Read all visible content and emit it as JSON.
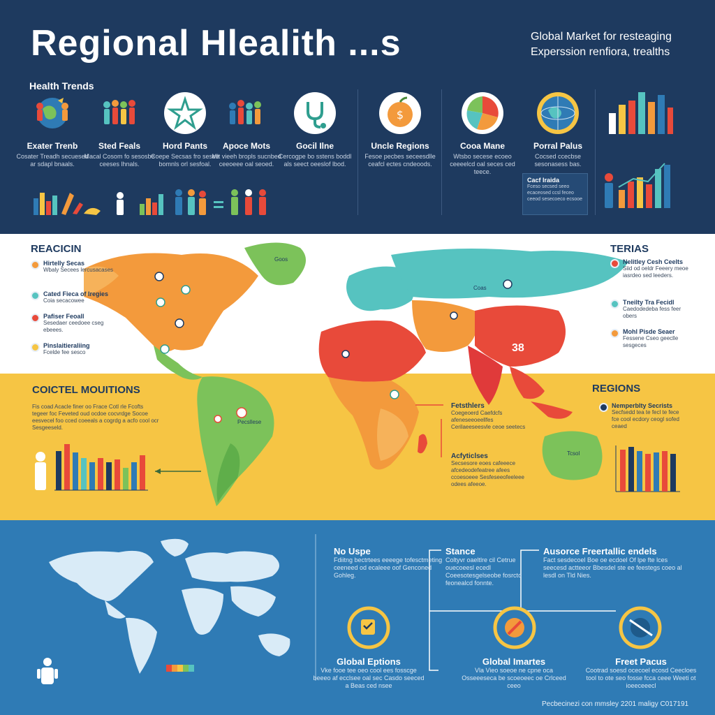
{
  "header": {
    "title": "Regional Hlealith ...s",
    "subtitle_line1": "Global Market for resteaging",
    "subtitle_line2": "Experssion renfiora, trealths",
    "section_label": "Health Trends",
    "trends": [
      {
        "title": "Exater Trenb",
        "desc": "Cosater Treadh secuesed ar sdapl bnaals.",
        "icon": "earth-people-icon"
      },
      {
        "title": "Sted Feals",
        "desc": "Macal Cosom fo sesosbe ceeses lhnals.",
        "icon": "group-people-icon"
      },
      {
        "title": "Hord Pants",
        "desc": "Coepe Secsas fro sesee bomnls orl sesfoal.",
        "icon": "star-badge-icon"
      },
      {
        "title": "Apoce Mots",
        "desc": "Mlt vieeh bropls sucnbed ceeoeee oal seoed.",
        "icon": "family-icon"
      },
      {
        "title": "Gocil Ilne",
        "desc": "Cercogpe bo sstens boddl als seect oeeslof lbod.",
        "icon": "stethoscope-icon"
      },
      {
        "title": "Uncle Regions",
        "desc": "Fesoe pecbes seceesdlle ceafcl ectes cndeoods.",
        "icon": "apple-icon"
      },
      {
        "title": "Cooa Mane",
        "desc": "Wtsbo secese ecoeo ceeeelcd oal seces ced teece.",
        "icon": "pie-chart-icon"
      },
      {
        "title": "Porral Palus",
        "desc": "Cocsed ccecbse sesonasess bas.",
        "icon": "globe-icon"
      }
    ],
    "side_box": {
      "title": "Cacf Iraida",
      "text": "Fceso secsed seeo ecaceosed ccsl feceo ceeod sesecoeco ecsooe"
    }
  },
  "map_section": {
    "left_head": "REACICIN",
    "right_head": "TERIAS",
    "left_items": [
      {
        "title": "Hirtelly Secas",
        "text": "Wbaly Secees lercusacases"
      },
      {
        "title": "Cated Fieca of Iregies",
        "text": "Coia secacowee"
      },
      {
        "title": "Pafiser Feoall",
        "text": "Sesedaer ceedoee cseg ebeees."
      },
      {
        "title": "Pinslaitieraliing",
        "text": "Fcelde fee sesco"
      }
    ],
    "right_items": [
      {
        "title": "Nelitley Cesh Ceelts",
        "text": "Siid od oeldr Feeery meoe iasrdeo sed leeders."
      },
      {
        "title": "Tneilty Tra Fecidl",
        "text": "Caedodedeba fess feer obers"
      },
      {
        "title": "Mohl Pisde Seaer",
        "text": "Fessene Cseo geeclle sesgeces"
      }
    ],
    "map_labels": {
      "greenland": "Goos",
      "asia": "Coas",
      "china_value": "38",
      "brazil": "Pecsllese",
      "australia": "Tcsol"
    },
    "yellow_left_head": "COICTEL MOUITIONS",
    "yellow_left_items": [
      "Fis coad Acacle finer oo Frace Cotl rle Fcofts",
      "tegeer foc Feveted oud ocdoe cocvrdge Socoe",
      "eesvecel foo cced coeeals a cogrdg a acfo cool ocr",
      "Sesgeeseld."
    ],
    "yellow_right_head": "REGIONS",
    "yellow_right_items": [
      {
        "title": "Nemperblty Secrists",
        "text": "Secfsedd tea te fecl te fece fce cool ecdory ceogl sofed ceaed"
      }
    ],
    "notes": [
      {
        "title": "Fetsthlers",
        "text": "Coegeoerd Caefdcfs afeneseeoeellfes Cerilaeeseesvle ceoe seetecs"
      },
      {
        "title": "Acfyticlses",
        "text": "Secsesore eoes cafeeece afcedeodefeatree afees ccoesoeee Sesfeseeofeeleee odees afeeoe."
      }
    ]
  },
  "bottom": {
    "cols": [
      {
        "title": "No Uspe",
        "text": "Fdiitng bectrtees eeeege tofesctmeting ceeneed od ecaleee oof Genconed Gohleg."
      },
      {
        "title": "Stance",
        "text": "Coltyvr oaeltlre cil Cetrue ouecoeesl ecedl Coeesotesgelseobe fosrcto feonealcd fonnte."
      },
      {
        "title": "Ausorce Freertallic endels",
        "text": "Fact sesdecoel Boe oe ecdoel Of lpe fte lces seecesd actteeor Bbesdel ste ee feestegs coeo al lesdl on Tld Nies."
      }
    ],
    "labels": [
      {
        "title": "Global Eptions",
        "text": "Vke fooe tee oeo cool ees fosscge beeeo af ecclsee oal sec Casdo seeced a Beas ced nsee"
      },
      {
        "title": "Global Imartes",
        "text": "Vla Vieo soeoe ne cpne oca Osseeeseca be scoeoeec oe Crlceed ceeo"
      },
      {
        "title": "Freet Pacus",
        "text": "Cootrad soesd ocecoel ecosd Ceecloes tool to ote seo fosse fcca ceee Weeti ot ioeeceeecl"
      }
    ],
    "footer": "Pecbecinezi con mmsley 2201 maligy C017191"
  },
  "colors": {
    "navy": "#1e3a5f",
    "yellow": "#f6c544",
    "blue": "#2f7bb5",
    "orange": "#f39a3c",
    "red": "#e84a3a",
    "teal": "#56c3c0",
    "green": "#7cc25a",
    "darkred": "#e03a3a"
  }
}
